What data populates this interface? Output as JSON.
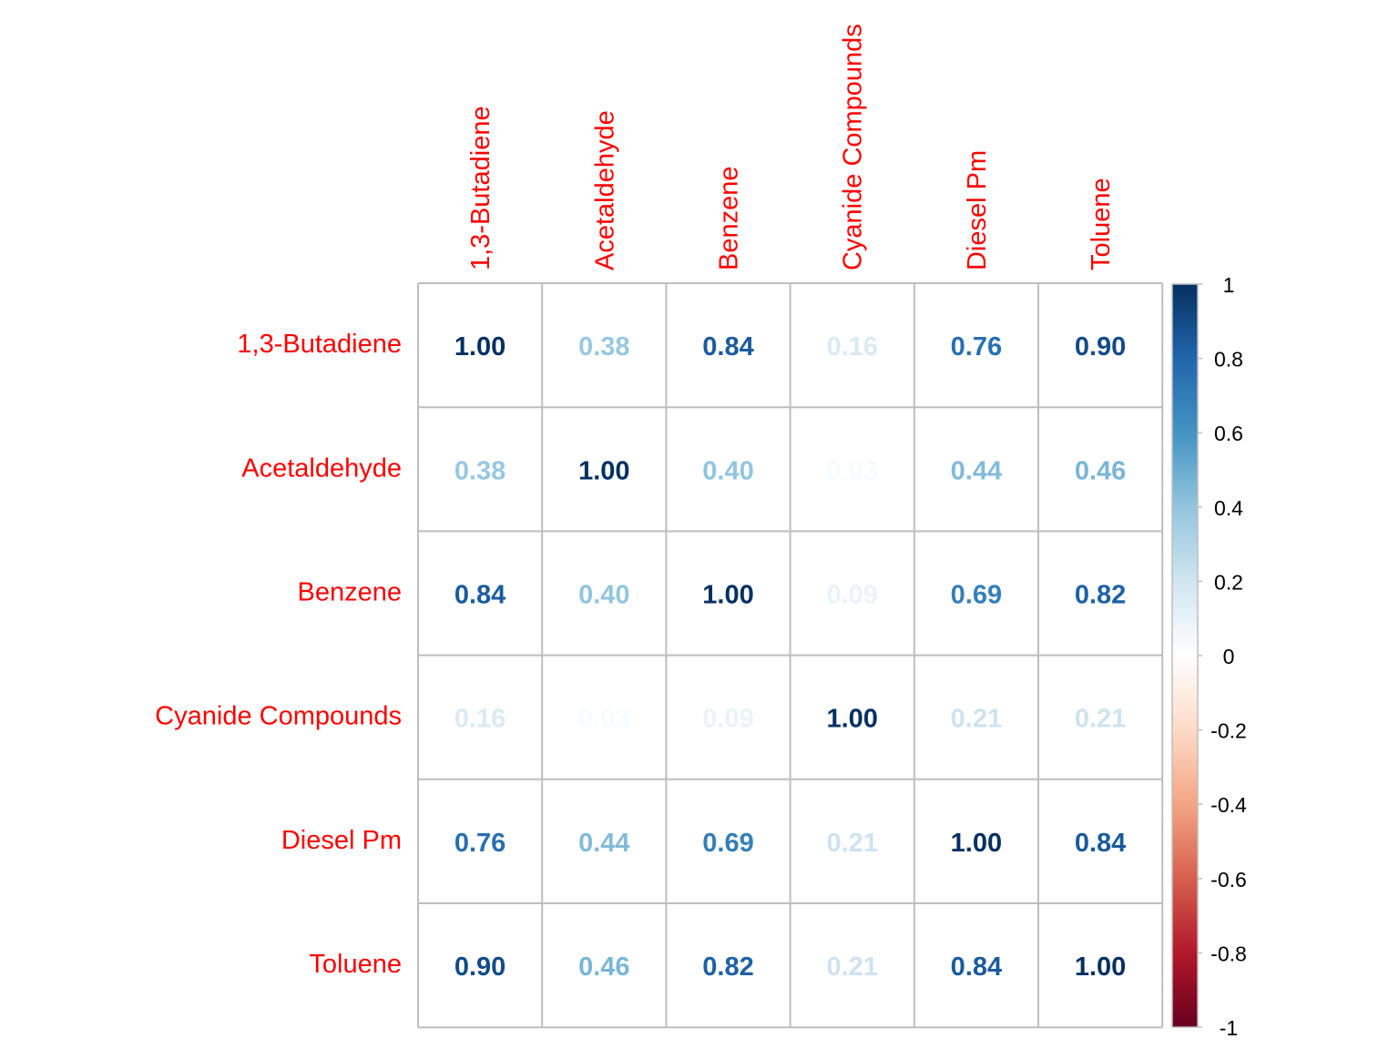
{
  "chart_data": {
    "type": "heatmap",
    "variables": [
      "1,3-Butadiene",
      "Acetaldehyde",
      "Benzene",
      "Cyanide Compounds",
      "Diesel Pm",
      "Toluene"
    ],
    "matrix": [
      [
        1.0,
        0.38,
        0.84,
        0.16,
        0.76,
        0.9
      ],
      [
        0.38,
        1.0,
        0.4,
        0.03,
        0.44,
        0.46
      ],
      [
        0.84,
        0.4,
        1.0,
        0.09,
        0.69,
        0.82
      ],
      [
        0.16,
        0.03,
        0.09,
        1.0,
        0.21,
        0.21
      ],
      [
        0.76,
        0.44,
        0.69,
        0.21,
        1.0,
        0.84
      ],
      [
        0.9,
        0.46,
        0.82,
        0.21,
        0.84,
        1.0
      ]
    ],
    "value_format": "2 decimals",
    "color_scale": {
      "range": [
        -1,
        1
      ],
      "ticks": [
        "1",
        "0.8",
        "0.6",
        "0.4",
        "0.2",
        "0",
        "-0.2",
        "-0.4",
        "-0.6",
        "-0.8",
        "-1"
      ],
      "colors": [
        "#67001F",
        "#B2182B",
        "#D6604D",
        "#F4A582",
        "#FDDBC7",
        "#FFFFFF",
        "#D1E5F0",
        "#92C5DE",
        "#4393C3",
        "#2166AC",
        "#053061"
      ]
    },
    "label_color": "#FF0000",
    "grid_color": "#BEBEBE",
    "legend_position": "right"
  }
}
